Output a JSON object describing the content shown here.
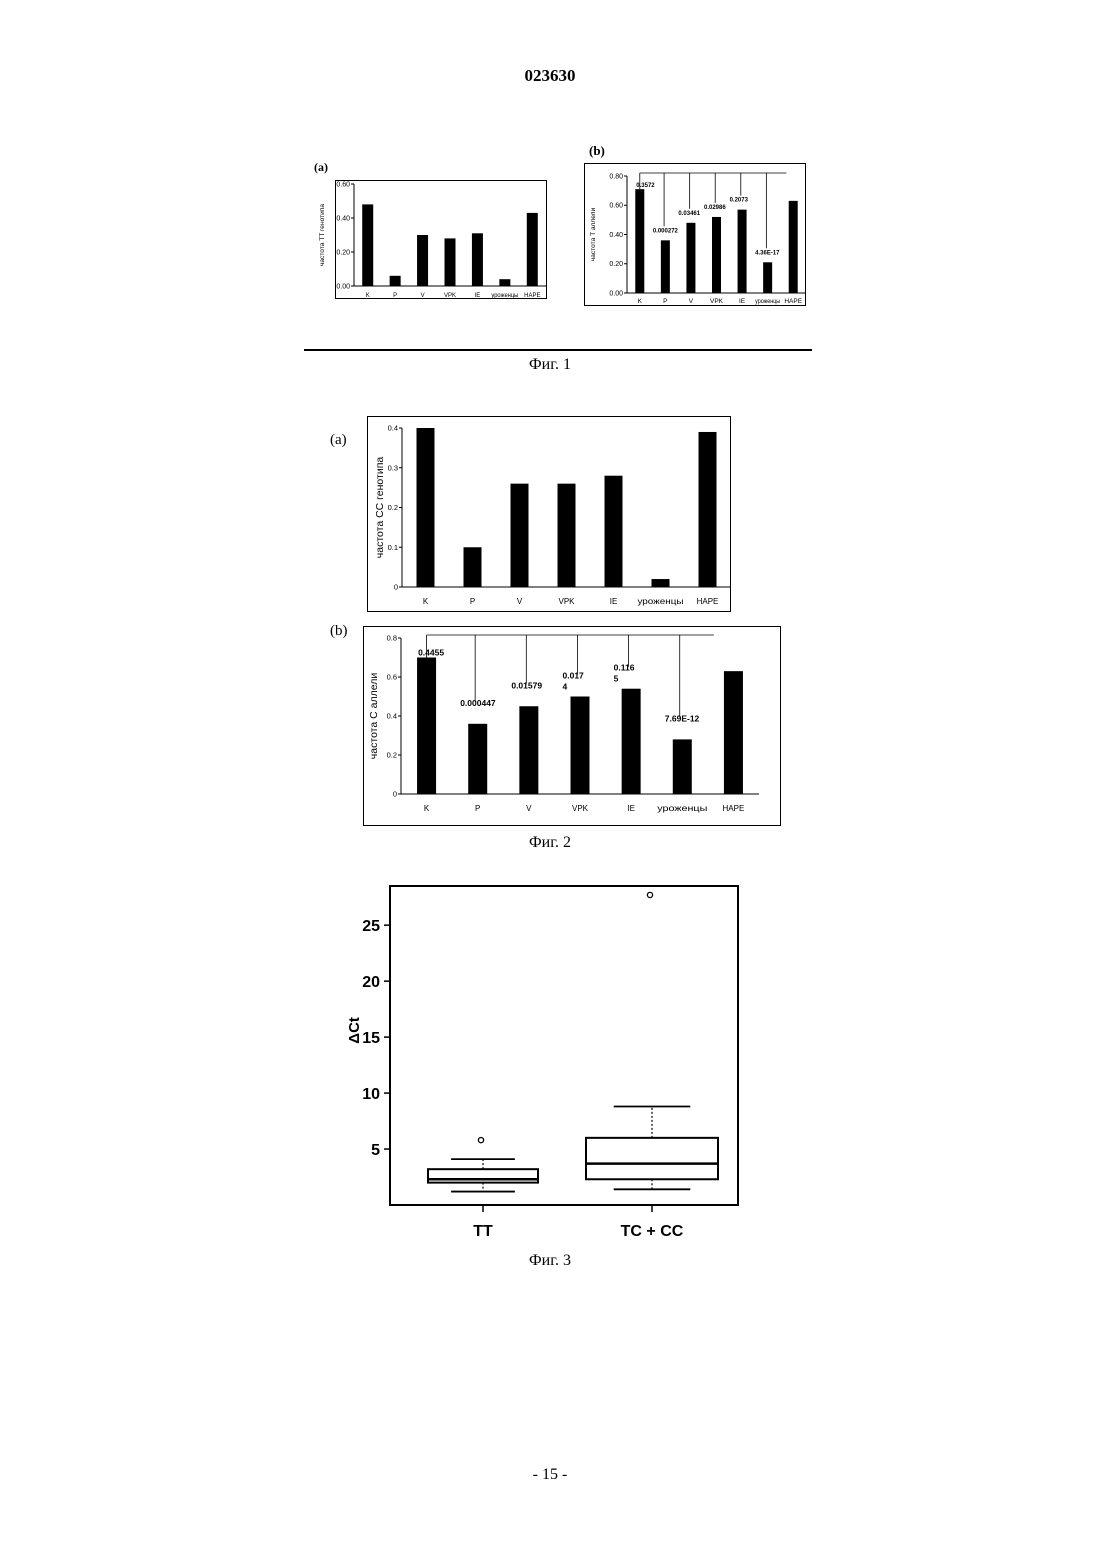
{
  "header": {
    "doc_number": "023630"
  },
  "figures": {
    "fig1": {
      "caption": "Фиг. 1",
      "label_a": "(a)",
      "label_b": "(b)"
    },
    "fig2": {
      "caption": "Фиг. 2",
      "label_a": "(a)",
      "label_b": "(b)"
    },
    "fig3": {
      "caption": "Фиг. 3"
    }
  },
  "footer": {
    "page_number": "- 15 -"
  },
  "chart_data": [
    {
      "id": "fig1a",
      "type": "bar",
      "categories": [
        "K",
        "P",
        "V",
        "VPK",
        "IE",
        "уроженцы",
        "HAPE"
      ],
      "values": [
        0.48,
        0.06,
        0.3,
        0.28,
        0.31,
        0.04,
        0.43
      ],
      "ylabel": "частота TT генотипа",
      "ylim": [
        0,
        0.6
      ],
      "yticks": [
        "0.00",
        "0.20",
        "0.40",
        "0.60"
      ],
      "ytick_values": [
        0,
        0.2,
        0.4,
        0.6
      ],
      "bar_color": "#000000"
    },
    {
      "id": "fig1b",
      "type": "bar",
      "categories": [
        "K",
        "P",
        "V",
        "VPK",
        "IE",
        "уроженцы",
        "HAPE"
      ],
      "values": [
        0.71,
        0.36,
        0.48,
        0.52,
        0.57,
        0.21,
        0.63
      ],
      "ylabel": "частота T аллели",
      "ylim": [
        0,
        0.8
      ],
      "yticks": [
        "0.00",
        "0.20",
        "0.40",
        "0.60",
        "0.80"
      ],
      "ytick_values": [
        0,
        0.2,
        0.4,
        0.6,
        0.8
      ],
      "annotations": [
        "0.3572",
        "0.000272",
        "0.03461",
        "0.02986",
        "0.2073",
        "4.36E-17"
      ],
      "bar_color": "#000000"
    },
    {
      "id": "fig2a",
      "type": "bar",
      "categories": [
        "K",
        "P",
        "V",
        "VPK",
        "IE",
        "уроженцы",
        "HAPE"
      ],
      "values": [
        0.4,
        0.1,
        0.26,
        0.26,
        0.28,
        0.02,
        0.39
      ],
      "ylabel": "частота CC генотипа",
      "ylim": [
        0,
        0.4
      ],
      "yticks": [
        "0",
        "0.1",
        "0.2",
        "0.3",
        "0.4"
      ],
      "ytick_values": [
        0,
        0.1,
        0.2,
        0.3,
        0.4
      ],
      "bar_color": "#000000"
    },
    {
      "id": "fig2b",
      "type": "bar",
      "categories": [
        "K",
        "P",
        "V",
        "VPK",
        "IE",
        "уроженцы",
        "HAPE"
      ],
      "values": [
        0.7,
        0.36,
        0.45,
        0.5,
        0.54,
        0.28,
        0.63
      ],
      "ylabel": "частота C аллели",
      "ylim": [
        0,
        0.8
      ],
      "yticks": [
        "0",
        "0.2",
        "0.4",
        "0.6",
        "0.8"
      ],
      "ytick_values": [
        0,
        0.2,
        0.4,
        0.6,
        0.8
      ],
      "annotations": [
        "0.4455",
        "0.000447",
        "0.01579",
        "0.017\n4",
        "0.116\n5",
        "7.69E-12"
      ],
      "bar_color": "#000000"
    },
    {
      "id": "fig3",
      "type": "box",
      "ylabel": "ΔCt",
      "ylim": [
        0,
        28.5
      ],
      "yticks": [
        "5",
        "10",
        "15",
        "20",
        "25"
      ],
      "ytick_values": [
        5,
        10,
        15,
        20,
        25
      ],
      "groups": [
        {
          "label": "TT",
          "min": 1.2,
          "q1": 2.0,
          "median": 2.3,
          "q3": 3.2,
          "max": 4.1,
          "outliers": [
            5.8
          ]
        },
        {
          "label": "TC + CC",
          "min": 1.4,
          "q1": 2.3,
          "median": 3.7,
          "q3": 6.0,
          "max": 8.8,
          "outliers": [
            27.7
          ]
        }
      ]
    }
  ]
}
